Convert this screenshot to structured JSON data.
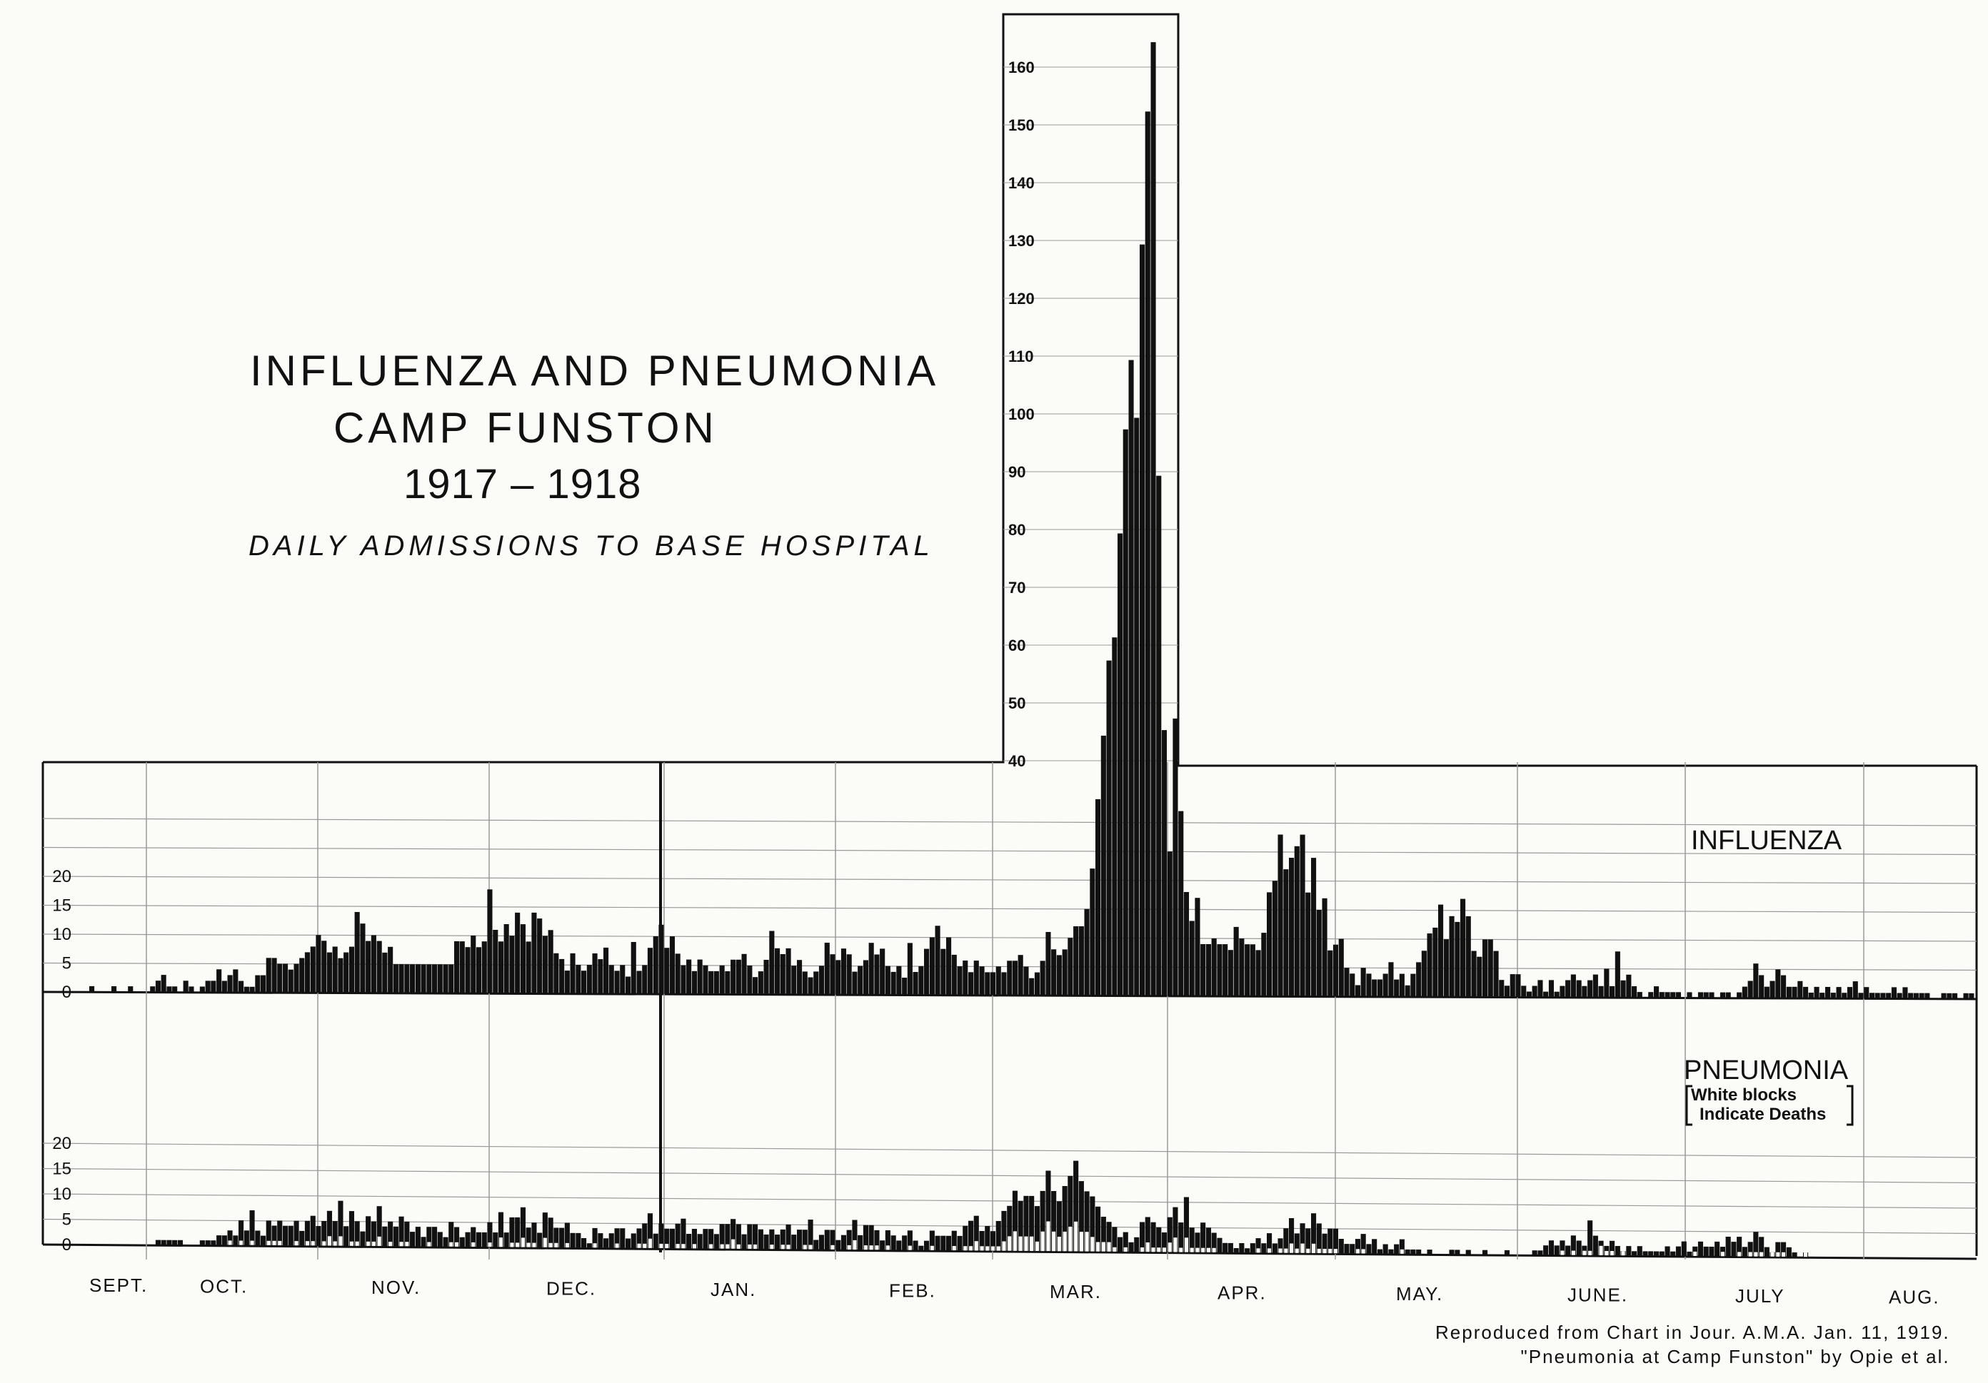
{
  "title": {
    "line1": "INFLUENZA AND PNEUMONIA",
    "line2": "CAMP FUNSTON",
    "line3": "1917 – 1918",
    "subtitle": "DAILY ADMISSIONS TO BASE HOSPITAL"
  },
  "credit": {
    "line1": "Reproduced from Chart in Jour. A.M.A. Jan. 11, 1919.",
    "line2": "\"Pneumonia at Camp Funston\" by Opie et al."
  },
  "colors": {
    "ink": "#111111",
    "paper": "#fbfbf8",
    "grid": "#9a9a9a"
  },
  "chart_data": [
    {
      "type": "bar",
      "panel": "INFLUENZA",
      "y_ticks": [
        "0",
        "5",
        "10",
        "15",
        "20"
      ],
      "inset_y_ticks": [
        "40",
        "50",
        "60",
        "70",
        "80",
        "90",
        "100",
        "110",
        "120",
        "130",
        "140",
        "150",
        "160"
      ],
      "ylim": [
        0,
        165
      ],
      "months": [
        "SEPT.",
        "OCT.",
        "NOV.",
        "DEC.",
        "JAN.",
        "FEB.",
        "MAR.",
        "APR.",
        "MAY.",
        "JUNE.",
        "JULY",
        "AUG."
      ],
      "values": [
        1,
        0,
        0,
        0,
        1,
        0,
        0,
        1,
        0,
        0,
        0,
        1,
        2,
        3,
        1,
        1,
        0,
        2,
        1,
        0,
        1,
        2,
        2,
        4,
        2,
        3,
        4,
        2,
        1,
        1,
        3,
        3,
        6,
        6,
        5,
        5,
        4,
        5,
        6,
        7,
        8,
        10,
        9,
        7,
        8,
        6,
        7,
        8,
        14,
        12,
        9,
        10,
        9,
        7,
        8,
        5,
        5,
        5,
        5,
        5,
        5,
        5,
        5,
        5,
        5,
        5,
        9,
        9,
        8,
        10,
        8,
        9,
        18,
        11,
        9,
        12,
        10,
        14,
        12,
        9,
        14,
        13,
        10,
        11,
        7,
        6,
        4,
        7,
        5,
        4,
        5,
        7,
        6,
        8,
        5,
        4,
        5,
        3,
        9,
        4,
        5,
        8,
        10,
        12,
        8,
        10,
        7,
        5,
        6,
        4,
        6,
        5,
        4,
        4,
        5,
        4,
        6,
        6,
        7,
        5,
        3,
        4,
        6,
        11,
        8,
        7,
        8,
        5,
        6,
        4,
        3,
        4,
        5,
        9,
        7,
        6,
        8,
        7,
        4,
        5,
        6,
        9,
        7,
        8,
        5,
        4,
        5,
        3,
        9,
        4,
        5,
        8,
        10,
        12,
        8,
        10,
        7,
        5,
        6,
        4,
        6,
        5,
        4,
        4,
        5,
        4,
        6,
        6,
        7,
        5,
        3,
        4,
        6,
        11,
        8,
        7,
        8,
        10,
        12,
        12,
        15,
        22,
        34,
        45,
        58,
        62,
        80,
        98,
        110,
        100,
        130,
        153,
        165,
        90,
        46,
        25,
        48,
        32,
        18,
        13,
        17,
        9,
        9,
        10,
        9,
        9,
        8,
        12,
        10,
        9,
        9,
        8,
        11,
        18,
        20,
        28,
        22,
        24,
        26,
        28,
        18,
        24,
        15,
        17,
        8,
        9,
        10,
        5,
        4,
        2,
        5,
        4,
        3,
        3,
        4,
        6,
        3,
        4,
        2,
        4,
        6,
        8,
        11,
        12,
        16,
        10,
        14,
        13,
        17,
        14,
        8,
        7,
        10,
        10,
        8,
        3,
        2,
        4,
        4,
        2,
        1,
        2,
        3,
        1,
        3,
        1,
        2,
        3,
        4,
        3,
        2,
        3,
        4,
        2,
        5,
        2,
        8,
        3,
        4,
        2,
        1,
        0,
        1,
        2,
        1,
        1,
        1,
        1,
        0,
        1,
        0,
        1,
        1,
        1,
        0,
        1,
        1,
        0,
        1,
        2,
        3,
        6,
        4,
        2,
        3,
        5,
        4,
        2,
        2,
        3,
        2,
        1,
        2,
        1,
        2,
        1,
        2,
        1,
        2,
        3,
        1,
        2,
        1,
        1,
        1,
        1,
        2,
        1,
        2,
        1,
        1,
        1,
        1,
        0,
        0,
        1,
        1,
        1,
        0,
        1,
        1
      ]
    },
    {
      "type": "bar",
      "panel": "PNEUMONIA",
      "legend": [
        "White blocks",
        "Indicate Deaths"
      ],
      "y_ticks": [
        "0",
        "5",
        "10",
        "15",
        "20"
      ],
      "ylim": [
        0,
        22
      ],
      "months": [
        "SEPT.",
        "OCT.",
        "NOV.",
        "DEC.",
        "JAN.",
        "FEB.",
        "MAR.",
        "APR.",
        "MAY.",
        "JUNE.",
        "JULY",
        "AUG."
      ],
      "values": [
        0,
        0,
        0,
        0,
        0,
        0,
        0,
        0,
        0,
        0,
        0,
        0,
        1,
        1,
        1,
        1,
        1,
        0,
        0,
        0,
        1,
        1,
        1,
        2,
        2,
        3,
        2,
        5,
        3,
        7,
        3,
        2,
        5,
        4,
        5,
        4,
        4,
        5,
        3,
        5,
        6,
        4,
        5,
        7,
        5,
        9,
        4,
        7,
        5,
        3,
        6,
        5,
        8,
        4,
        5,
        4,
        6,
        5,
        3,
        4,
        2,
        4,
        4,
        3,
        2,
        5,
        4,
        2,
        3,
        4,
        3,
        3,
        5,
        3,
        7,
        3,
        6,
        6,
        8,
        4,
        5,
        3,
        7,
        6,
        4,
        4,
        5,
        3,
        3,
        2,
        1,
        4,
        3,
        2,
        3,
        4,
        4,
        2,
        3,
        4,
        5,
        7,
        3,
        5,
        4,
        4,
        5,
        6,
        3,
        4,
        3,
        4,
        4,
        3,
        5,
        5,
        6,
        5,
        3,
        5,
        5,
        4,
        3,
        4,
        3,
        4,
        5,
        3,
        4,
        4,
        6,
        2,
        3,
        4,
        4,
        2,
        3,
        4,
        6,
        3,
        5,
        5,
        4,
        2,
        4,
        3,
        2,
        3,
        4,
        2,
        1,
        2,
        4,
        3,
        3,
        3,
        4,
        3,
        5,
        6,
        7,
        4,
        5,
        4,
        6,
        8,
        9,
        12,
        10,
        11,
        11,
        9,
        12,
        16,
        12,
        10,
        13,
        15,
        18,
        14,
        12,
        11,
        9,
        7,
        6,
        5,
        3,
        4,
        2,
        3,
        6,
        7,
        6,
        5,
        4,
        7,
        9,
        6,
        11,
        5,
        4,
        6,
        5,
        4,
        3,
        2,
        2,
        1,
        2,
        1,
        2,
        3,
        2,
        4,
        2,
        3,
        5,
        7,
        4,
        6,
        5,
        8,
        6,
        4,
        5,
        5,
        3,
        2,
        2,
        3,
        4,
        2,
        3,
        1,
        2,
        1,
        2,
        3,
        1,
        1,
        1,
        0,
        1,
        0,
        0,
        0,
        1,
        1,
        0,
        1,
        0,
        0,
        1,
        0,
        0,
        0,
        1,
        0,
        0,
        0,
        0,
        1,
        1,
        2,
        3,
        2,
        3,
        2,
        4,
        3,
        2,
        7,
        4,
        3,
        2,
        3,
        2,
        1,
        2,
        1,
        2,
        1,
        1,
        1,
        1,
        2,
        1,
        2,
        3,
        1,
        2,
        3,
        2,
        2,
        3,
        2,
        4,
        3,
        4,
        2,
        3,
        5,
        4,
        2,
        1,
        3,
        3,
        2,
        1,
        0,
        1
      ],
      "deaths": [
        0,
        0,
        0,
        0,
        0,
        0,
        0,
        0,
        0,
        0,
        0,
        0,
        0,
        0,
        0,
        0,
        0,
        0,
        0,
        0,
        0,
        0,
        0,
        0,
        0,
        1,
        0,
        1,
        0,
        1,
        0,
        0,
        1,
        1,
        1,
        0,
        0,
        1,
        0,
        1,
        1,
        0,
        1,
        2,
        1,
        2,
        0,
        1,
        1,
        0,
        1,
        1,
        2,
        0,
        1,
        0,
        1,
        1,
        0,
        0,
        0,
        1,
        0,
        0,
        0,
        1,
        1,
        0,
        0,
        1,
        0,
        0,
        1,
        0,
        2,
        0,
        1,
        1,
        2,
        1,
        1,
        0,
        2,
        1,
        1,
        0,
        1,
        0,
        0,
        0,
        0,
        1,
        0,
        0,
        0,
        1,
        0,
        0,
        0,
        1,
        1,
        2,
        0,
        1,
        1,
        0,
        1,
        1,
        0,
        1,
        0,
        0,
        1,
        0,
        1,
        1,
        2,
        1,
        0,
        1,
        1,
        0,
        0,
        1,
        0,
        1,
        1,
        0,
        0,
        1,
        1,
        0,
        0,
        0,
        1,
        0,
        0,
        1,
        2,
        0,
        1,
        1,
        1,
        0,
        1,
        0,
        0,
        0,
        1,
        0,
        0,
        0,
        1,
        0,
        0,
        0,
        1,
        0,
        1,
        1,
        2,
        1,
        1,
        1,
        1,
        2,
        3,
        4,
        3,
        3,
        3,
        2,
        4,
        6,
        4,
        3,
        4,
        5,
        6,
        4,
        4,
        3,
        2,
        2,
        2,
        1,
        0,
        1,
        0,
        0,
        1,
        2,
        1,
        1,
        1,
        2,
        3,
        1,
        3,
        1,
        1,
        1,
        1,
        1,
        0,
        0,
        0,
        0,
        0,
        0,
        0,
        1,
        0,
        1,
        0,
        1,
        1,
        2,
        1,
        2,
        1,
        2,
        1,
        1,
        1,
        1,
        0,
        0,
        0,
        1,
        1,
        0,
        0,
        0,
        0,
        0,
        0,
        1,
        0,
        0,
        0,
        0,
        0,
        0,
        0,
        0,
        0,
        0,
        0,
        0,
        0,
        0,
        0,
        0,
        0,
        0,
        0,
        0,
        0,
        0,
        0,
        0,
        0,
        0,
        0,
        0,
        1,
        0,
        1,
        0,
        1,
        1,
        0,
        2,
        1,
        1,
        0,
        1,
        0,
        0,
        0,
        0,
        0,
        0,
        0,
        0,
        0,
        0,
        0,
        0,
        1,
        0,
        0,
        0,
        0,
        1,
        0,
        0,
        1,
        0,
        1,
        1,
        1,
        0,
        1,
        1,
        1,
        0,
        0,
        1,
        1,
        0,
        0,
        0,
        0
      ]
    }
  ]
}
